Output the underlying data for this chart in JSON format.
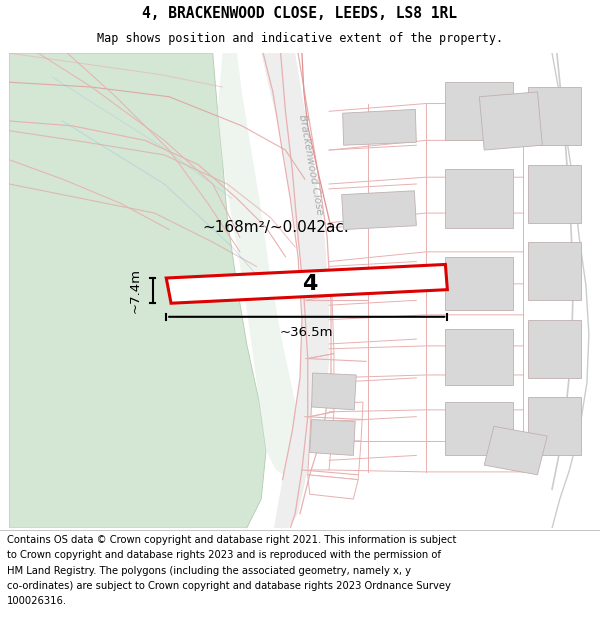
{
  "title_line1": "4, BRACKENWOOD CLOSE, LEEDS, LS8 1RL",
  "title_line2": "Map shows position and indicative extent of the property.",
  "area_text": "~168m²/~0.042ac.",
  "width_text": "~36.5m",
  "height_text": "~7.4m",
  "plot_number": "4",
  "footer_lines": [
    "Contains OS data © Crown copyright and database right 2021. This information is subject",
    "to Crown copyright and database rights 2023 and is reproduced with the permission of",
    "HM Land Registry. The polygons (including the associated geometry, namely x, y",
    "co-ordinates) are subject to Crown copyright and database rights 2023 Ordnance Survey",
    "100026316."
  ],
  "map_bg": "#ffffff",
  "park_color": "#d4e6d4",
  "park_edge": "#b0ccb0",
  "road_fill": "#e8e8e8",
  "building_fill": "#d8d8d8",
  "building_edge": "#c0a8a8",
  "plot_line_color": "#e8b0b0",
  "highlight_fill": "#ffffff",
  "highlight_edge": "#dd0000",
  "dim_line_color": "#000000",
  "street_label_color": "#aaaaaa",
  "title_fontsize": 10.5,
  "subtitle_fontsize": 8.5,
  "footer_fontsize": 7.2,
  "area_fontsize": 11,
  "plot_num_fontsize": 16,
  "dim_fontsize": 9.5
}
